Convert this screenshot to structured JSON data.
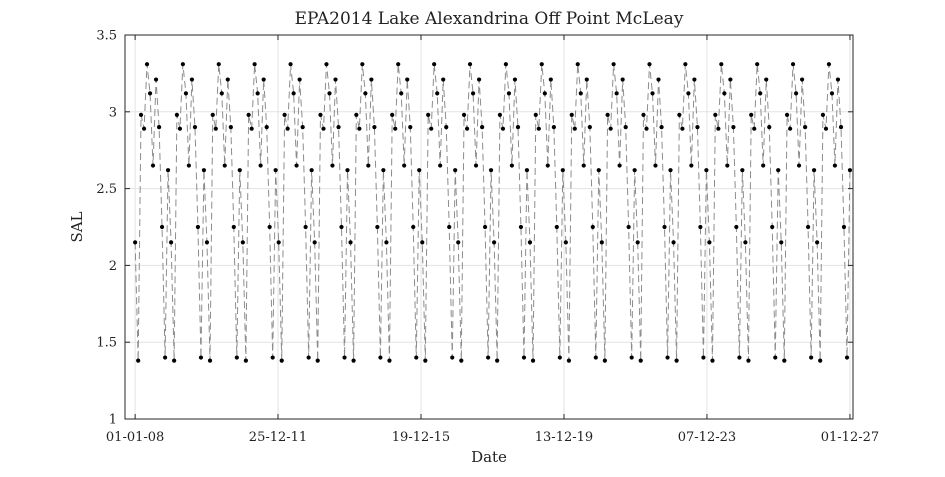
{
  "chart_data": {
    "type": "line",
    "title": "EPA2014 Lake Alexandrina Off Point McLeay",
    "xlabel": "Date",
    "ylabel": "SAL",
    "xlim": [
      "2007-09-20",
      "2028-01-01"
    ],
    "ylim": [
      1,
      3.5
    ],
    "x_ticks": [
      {
        "date": "2008-01-01",
        "label": "01-01-08"
      },
      {
        "date": "2011-12-25",
        "label": "25-12-11"
      },
      {
        "date": "2015-12-19",
        "label": "19-12-15"
      },
      {
        "date": "2019-12-13",
        "label": "13-12-19"
      },
      {
        "date": "2023-12-07",
        "label": "07-12-23"
      },
      {
        "date": "2027-12-01",
        "label": "01-12-27"
      }
    ],
    "y_ticks": [
      1,
      1.5,
      2,
      2.5,
      3,
      3.5
    ],
    "grid": true,
    "marker": "dot",
    "line_style": "dashed",
    "colors": {
      "line": "#8c8c8c",
      "marker": "#000000"
    },
    "cycle_years": 1,
    "cycle_month_pattern": [
      {
        "month": 1,
        "value": 2.15
      },
      {
        "month": 2,
        "value": 1.38
      },
      {
        "month": 3,
        "value": 2.98
      },
      {
        "month": 4,
        "value": 2.89
      },
      {
        "month": 5,
        "value": 3.31
      },
      {
        "month": 6,
        "value": 3.12
      },
      {
        "month": 7,
        "value": 2.65
      },
      {
        "month": 8,
        "value": 3.21
      },
      {
        "month": 9,
        "value": 2.9
      },
      {
        "month": 10,
        "value": 2.25
      },
      {
        "month": 11,
        "value": 1.4
      },
      {
        "month": 12,
        "value": 2.62
      }
    ],
    "series_start": "2008-01-01",
    "series_end": "2027-12-01"
  }
}
